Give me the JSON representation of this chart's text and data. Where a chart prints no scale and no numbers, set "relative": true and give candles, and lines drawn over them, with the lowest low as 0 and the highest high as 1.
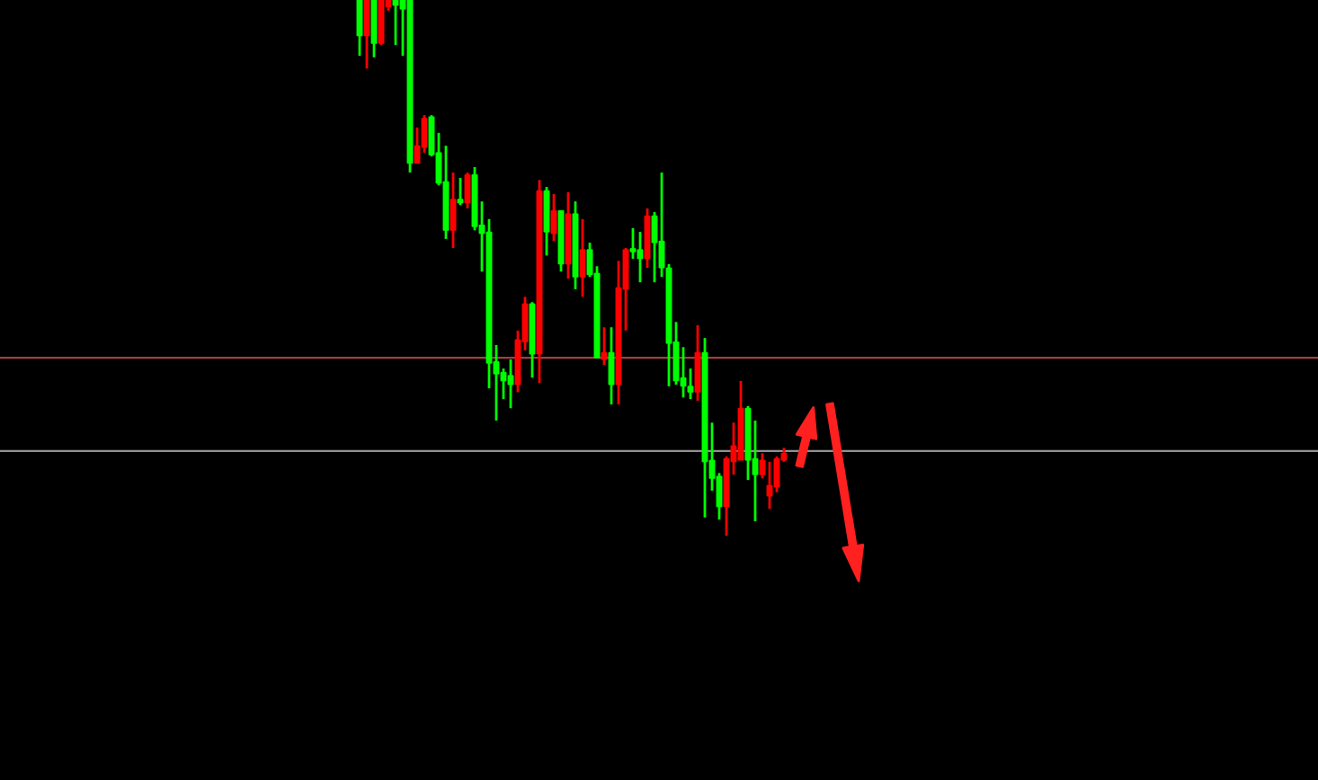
{
  "chart_data": {
    "type": "candlestick",
    "relative": true,
    "categories": [
      null,
      null,
      null,
      null,
      null,
      null,
      null,
      null,
      null,
      null,
      null,
      null,
      null,
      null,
      null,
      null,
      null,
      null,
      null,
      null,
      null,
      null,
      null,
      null,
      null,
      null,
      null,
      null,
      null,
      null,
      null,
      null,
      null,
      null,
      null,
      null,
      null,
      null,
      null,
      null,
      null,
      null,
      null,
      null,
      null,
      null,
      null,
      null,
      null,
      null,
      null,
      null,
      null,
      null,
      null,
      null,
      null,
      null,
      null,
      null
    ],
    "ohlc": [
      [
        1.0,
        1.0,
        0.896,
        0.933
      ],
      [
        0.933,
        1.0,
        0.872,
        1.0
      ],
      [
        1.0,
        1.0,
        0.893,
        0.919
      ],
      [
        0.919,
        1.0,
        0.916,
        1.0
      ],
      [
        0.987,
        1.0,
        0.98,
        1.0
      ],
      [
        1.0,
        1.0,
        0.916,
        0.99
      ],
      [
        1.0,
        1.0,
        0.896,
        0.983
      ],
      [
        1.0,
        1.0,
        0.678,
        0.695
      ],
      [
        0.695,
        0.762,
        0.695,
        0.728
      ],
      [
        0.725,
        0.785,
        0.715,
        0.779
      ],
      [
        0.782,
        0.785,
        0.708,
        0.711
      ],
      [
        0.715,
        0.752,
        0.654,
        0.658
      ],
      [
        0.661,
        0.728,
        0.554,
        0.57
      ],
      [
        0.57,
        0.678,
        0.537,
        0.628
      ],
      [
        0.628,
        0.668,
        0.617,
        0.621
      ],
      [
        0.621,
        0.678,
        0.611,
        0.674
      ],
      [
        0.674,
        0.688,
        0.57,
        0.577
      ],
      [
        0.58,
        0.624,
        0.493,
        0.564
      ],
      [
        0.567,
        0.591,
        0.275,
        0.322
      ],
      [
        0.325,
        0.356,
        0.215,
        0.302
      ],
      [
        0.305,
        0.312,
        0.255,
        0.289
      ],
      [
        0.299,
        0.329,
        0.238,
        0.282
      ],
      [
        0.282,
        0.383,
        0.268,
        0.366
      ],
      [
        0.362,
        0.446,
        0.346,
        0.433
      ],
      [
        0.433,
        0.436,
        0.295,
        0.339
      ],
      [
        0.339,
        0.664,
        0.285,
        0.644
      ],
      [
        0.644,
        0.651,
        0.523,
        0.567
      ],
      [
        0.564,
        0.638,
        0.55,
        0.607
      ],
      [
        0.607,
        0.607,
        0.493,
        0.507
      ],
      [
        0.507,
        0.641,
        0.48,
        0.601
      ],
      [
        0.601,
        0.624,
        0.46,
        0.483
      ],
      [
        0.483,
        0.591,
        0.446,
        0.534
      ],
      [
        0.534,
        0.547,
        0.483,
        0.487
      ],
      [
        0.49,
        0.503,
        0.332,
        0.332
      ],
      [
        0.329,
        0.389,
        0.319,
        0.342
      ],
      [
        0.342,
        0.389,
        0.245,
        0.282
      ],
      [
        0.282,
        0.513,
        0.245,
        0.463
      ],
      [
        0.46,
        0.537,
        0.383,
        0.534
      ],
      [
        0.534,
        0.574,
        0.517,
        0.53
      ],
      [
        0.534,
        0.567,
        0.473,
        0.517
      ],
      [
        0.517,
        0.611,
        0.5,
        0.597
      ],
      [
        0.597,
        0.604,
        0.473,
        0.547
      ],
      [
        0.55,
        0.678,
        0.483,
        0.5
      ],
      [
        0.5,
        0.507,
        0.279,
        0.359
      ],
      [
        0.362,
        0.399,
        0.282,
        0.289
      ],
      [
        0.295,
        0.352,
        0.258,
        0.279
      ],
      [
        0.279,
        0.312,
        0.255,
        0.268
      ],
      [
        0.268,
        0.393,
        0.252,
        0.342
      ],
      [
        0.342,
        0.369,
        0.034,
        0.138
      ],
      [
        0.141,
        0.211,
        0.084,
        0.107
      ],
      [
        0.111,
        0.117,
        0.03,
        0.054
      ],
      [
        0.054,
        0.148,
        0.0,
        0.144
      ],
      [
        0.138,
        0.211,
        0.114,
        0.168
      ],
      [
        0.141,
        0.289,
        0.141,
        0.238
      ],
      [
        0.238,
        0.242,
        0.104,
        0.141
      ],
      [
        0.144,
        0.215,
        0.027,
        0.114
      ],
      [
        0.114,
        0.154,
        0.107,
        0.141
      ],
      [
        0.074,
        0.138,
        0.05,
        0.094
      ],
      [
        0.091,
        0.148,
        0.081,
        0.144
      ],
      [
        0.141,
        0.164,
        0.138,
        0.154
      ]
    ],
    "colors": [
      "#00ff00",
      "#ff0000",
      "#00ff00",
      "#ff0000",
      "#ff0000",
      "#00ff00",
      "#00ff00",
      "#00ff00",
      "#ff0000",
      "#ff0000",
      "#00ff00",
      "#00ff00",
      "#00ff00",
      "#ff0000",
      "#00ff00",
      "#ff0000",
      "#00ff00",
      "#00ff00",
      "#00ff00",
      "#00ff00",
      "#00ff00",
      "#00ff00",
      "#ff0000",
      "#ff0000",
      "#00ff00",
      "#ff0000",
      "#00ff00",
      "#ff0000",
      "#00ff00",
      "#ff0000",
      "#00ff00",
      "#ff0000",
      "#00ff00",
      "#00ff00",
      "#ff0000",
      "#00ff00",
      "#ff0000",
      "#ff0000",
      "#00ff00",
      "#00ff00",
      "#ff0000",
      "#00ff00",
      "#00ff00",
      "#00ff00",
      "#00ff00",
      "#00ff00",
      "#00ff00",
      "#ff0000",
      "#00ff00",
      "#00ff00",
      "#00ff00",
      "#ff0000",
      "#ff0000",
      "#ff0000",
      "#00ff00",
      "#00ff00",
      "#ff0000",
      "#ff0000",
      "#ff0000",
      "#ff0000"
    ],
    "ref_lines": [
      {
        "axis": "y",
        "value": 0.332,
        "color": "#a04040"
      },
      {
        "axis": "y",
        "value": 0.158,
        "color": "#909090"
      }
    ]
  }
}
